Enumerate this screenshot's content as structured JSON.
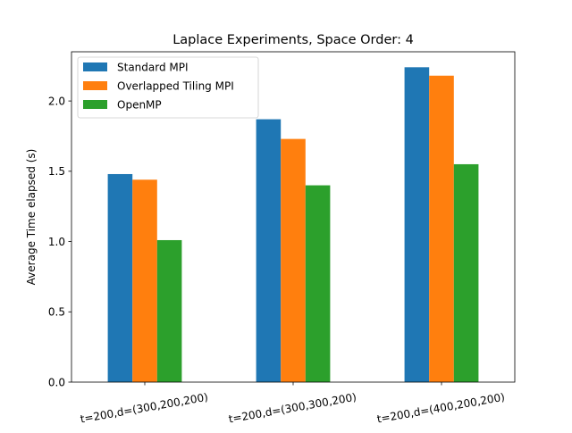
{
  "chart_data": {
    "type": "bar",
    "title": "Laplace Experiments, Space Order: 4",
    "xlabel": "",
    "ylabel": "Average Time elapsed (s)",
    "categories": [
      "t=200,d=(300,200,200)",
      "t=200,d=(300,300,200)",
      "t=200,d=(400,200,200)"
    ],
    "series": [
      {
        "name": "Standard MPI",
        "color": "#1f77b4",
        "values": [
          1.48,
          1.87,
          2.24
        ]
      },
      {
        "name": "Overlapped Tiling MPI",
        "color": "#ff7f0e",
        "values": [
          1.44,
          1.73,
          2.18
        ]
      },
      {
        "name": "OpenMP",
        "color": "#2ca02c",
        "values": [
          1.01,
          1.4,
          1.55
        ]
      }
    ],
    "ylim": [
      0,
      2.35
    ],
    "yticks": [
      "0.0",
      "0.5",
      "1.0",
      "1.5",
      "2.0"
    ],
    "grid": false,
    "legend_position": "top-left"
  }
}
